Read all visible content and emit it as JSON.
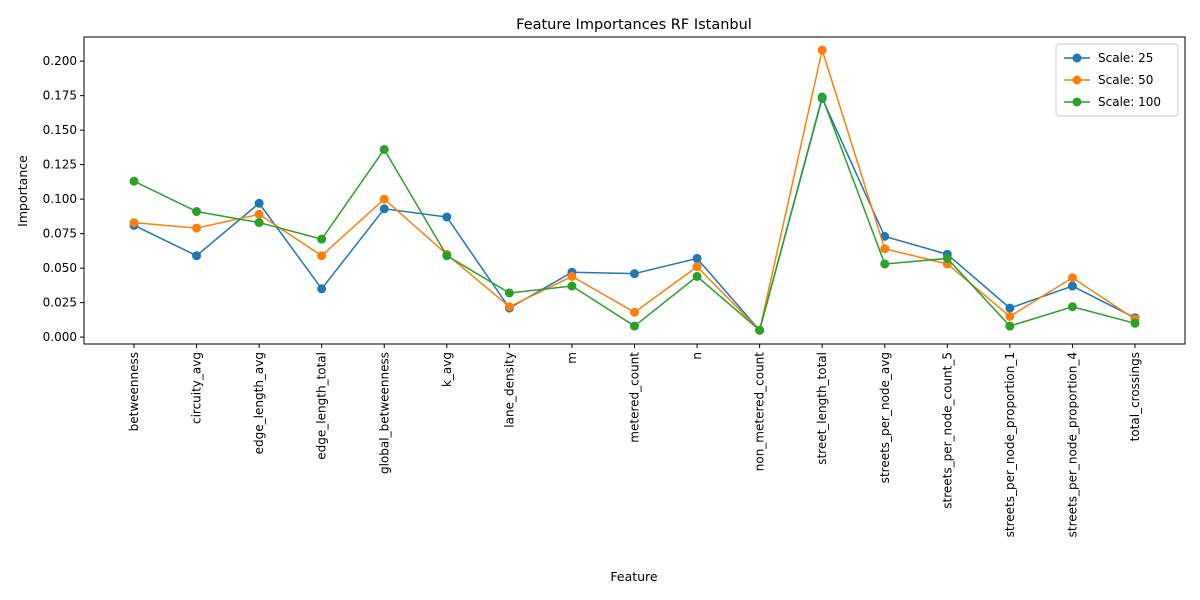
{
  "chart_data": {
    "type": "line",
    "title": "Feature Importances RF Istanbul",
    "xlabel": "Feature",
    "ylabel": "Importance",
    "ylim": [
      -0.005,
      0.2175
    ],
    "yticks": [
      0.0,
      0.025,
      0.05,
      0.075,
      0.1,
      0.125,
      0.15,
      0.175,
      0.2
    ],
    "ytick_labels": [
      "0.000",
      "0.025",
      "0.050",
      "0.075",
      "0.100",
      "0.125",
      "0.150",
      "0.175",
      "0.200"
    ],
    "grid": false,
    "legend_position": "top-right",
    "categories": [
      "betweenness",
      "circuity_avg",
      "edge_length_avg",
      "edge_length_total",
      "global_betweenness",
      "k_avg",
      "lane_density",
      "m",
      "metered_count",
      "n",
      "non_metered_count",
      "street_length_total",
      "streets_per_node_avg",
      "streets_per_node_count_5",
      "streets_per_node_proportion_1",
      "streets_per_node_proportion_4",
      "total_crossings"
    ],
    "series": [
      {
        "name": "Scale: 25",
        "color": "#1f77b4",
        "values": [
          0.081,
          0.059,
          0.097,
          0.035,
          0.093,
          0.087,
          0.021,
          0.047,
          0.046,
          0.057,
          0.005,
          0.173,
          0.073,
          0.06,
          0.021,
          0.037,
          0.014
        ]
      },
      {
        "name": "Scale: 50",
        "color": "#ff7f0e",
        "values": [
          0.083,
          0.079,
          0.089,
          0.059,
          0.1,
          0.06,
          0.022,
          0.044,
          0.018,
          0.051,
          0.005,
          0.208,
          0.064,
          0.053,
          0.015,
          0.043,
          0.013
        ]
      },
      {
        "name": "Scale: 100",
        "color": "#2ca02c",
        "values": [
          0.113,
          0.091,
          0.083,
          0.071,
          0.136,
          0.059,
          0.032,
          0.037,
          0.008,
          0.044,
          0.005,
          0.174,
          0.053,
          0.057,
          0.008,
          0.022,
          0.01
        ]
      }
    ]
  }
}
